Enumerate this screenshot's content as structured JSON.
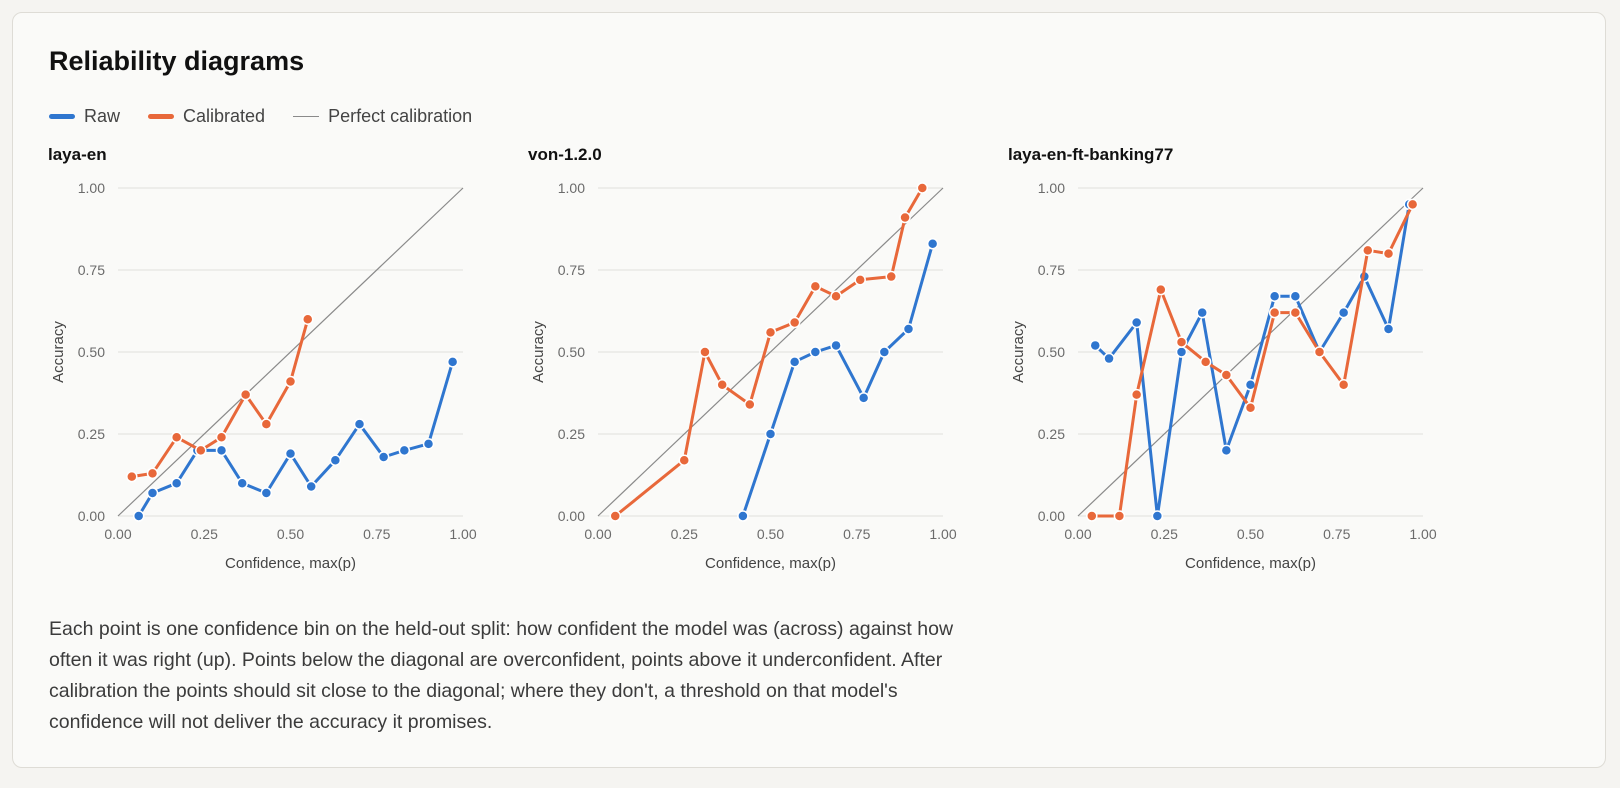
{
  "title": "Reliability diagrams",
  "legend": {
    "raw": "Raw",
    "calibrated": "Calibrated",
    "perfect": "Perfect calibration"
  },
  "colors": {
    "raw": "#2f76cf",
    "calibrated": "#e8683a",
    "diagonal": "#8a8a8a",
    "grid": "#e0e0dc"
  },
  "caption": "Each point is one confidence bin on the held-out split: how confident the model was (across) against how often it was right (up). Points below the diagonal are overconfident, points above it underconfident. After calibration the points should sit close to the diagonal; where they don't, a threshold on that model's confidence will not deliver the accuracy it promises.",
  "chart_data": [
    {
      "type": "line",
      "title": "laya-en",
      "xlabel": "Confidence, max(p)",
      "ylabel": "Accuracy",
      "xlim": [
        0,
        1
      ],
      "ylim": [
        0,
        1
      ],
      "xticks": [
        "0.00",
        "0.25",
        "0.50",
        "0.75",
        "1.00"
      ],
      "yticks": [
        "0.00",
        "0.25",
        "0.50",
        "0.75",
        "1.00"
      ],
      "grid": "horizontal",
      "reference_line": "Perfect calibration",
      "series": [
        {
          "name": "Raw",
          "x": [
            0.06,
            0.1,
            0.17,
            0.23,
            0.3,
            0.36,
            0.43,
            0.5,
            0.56,
            0.63,
            0.7,
            0.77,
            0.83,
            0.9,
            0.97
          ],
          "y": [
            0.0,
            0.07,
            0.1,
            0.2,
            0.2,
            0.1,
            0.07,
            0.19,
            0.09,
            0.17,
            0.28,
            0.18,
            0.2,
            0.22,
            0.47
          ]
        },
        {
          "name": "Calibrated",
          "x": [
            0.04,
            0.1,
            0.17,
            0.24,
            0.3,
            0.37,
            0.43,
            0.5,
            0.55
          ],
          "y": [
            0.12,
            0.13,
            0.24,
            0.2,
            0.24,
            0.37,
            0.28,
            0.41,
            0.6
          ]
        }
      ]
    },
    {
      "type": "line",
      "title": "von-1.2.0",
      "xlabel": "Confidence, max(p)",
      "ylabel": "Accuracy",
      "xlim": [
        0,
        1
      ],
      "ylim": [
        0,
        1
      ],
      "xticks": [
        "0.00",
        "0.25",
        "0.50",
        "0.75",
        "1.00"
      ],
      "yticks": [
        "0.00",
        "0.25",
        "0.50",
        "0.75",
        "1.00"
      ],
      "grid": "horizontal",
      "reference_line": "Perfect calibration",
      "series": [
        {
          "name": "Raw",
          "x": [
            0.42,
            0.5,
            0.57,
            0.63,
            0.69,
            0.77,
            0.83,
            0.9,
            0.97
          ],
          "y": [
            0.0,
            0.25,
            0.47,
            0.5,
            0.52,
            0.36,
            0.5,
            0.57,
            0.83
          ]
        },
        {
          "name": "Calibrated",
          "x": [
            0.05,
            0.25,
            0.31,
            0.36,
            0.44,
            0.5,
            0.57,
            0.63,
            0.69,
            0.76,
            0.85,
            0.89,
            0.94
          ],
          "y": [
            0.0,
            0.17,
            0.5,
            0.4,
            0.34,
            0.56,
            0.59,
            0.7,
            0.67,
            0.72,
            0.73,
            0.91,
            1.0
          ]
        }
      ]
    },
    {
      "type": "line",
      "title": "laya-en-ft-banking77",
      "xlabel": "Confidence, max(p)",
      "ylabel": "Accuracy",
      "xlim": [
        0,
        1
      ],
      "ylim": [
        0,
        1
      ],
      "xticks": [
        "0.00",
        "0.25",
        "0.50",
        "0.75",
        "1.00"
      ],
      "yticks": [
        "0.00",
        "0.25",
        "0.50",
        "0.75",
        "1.00"
      ],
      "grid": "horizontal",
      "reference_line": "Perfect calibration",
      "series": [
        {
          "name": "Raw",
          "x": [
            0.05,
            0.09,
            0.17,
            0.23,
            0.3,
            0.36,
            0.43,
            0.5,
            0.57,
            0.63,
            0.7,
            0.77,
            0.83,
            0.9,
            0.96
          ],
          "y": [
            0.52,
            0.48,
            0.59,
            0.0,
            0.5,
            0.62,
            0.2,
            0.4,
            0.67,
            0.67,
            0.5,
            0.62,
            0.73,
            0.57,
            0.95
          ]
        },
        {
          "name": "Calibrated",
          "x": [
            0.04,
            0.12,
            0.17,
            0.24,
            0.3,
            0.37,
            0.43,
            0.5,
            0.57,
            0.63,
            0.7,
            0.77,
            0.84,
            0.9,
            0.97
          ],
          "y": [
            0.0,
            0.0,
            0.37,
            0.69,
            0.53,
            0.47,
            0.43,
            0.33,
            0.62,
            0.62,
            0.5,
            0.4,
            0.81,
            0.8,
            0.95
          ]
        }
      ]
    }
  ]
}
